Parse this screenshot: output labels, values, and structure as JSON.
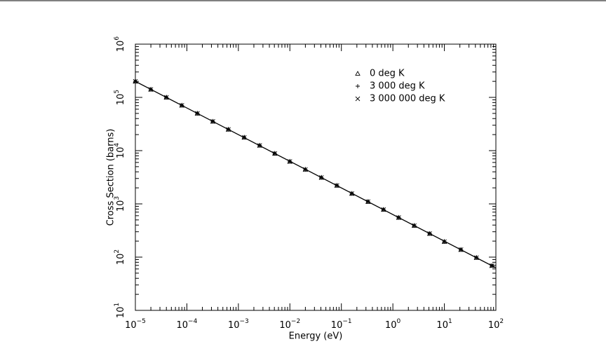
{
  "chart_data": {
    "type": "scatter",
    "x_label": "Energy (eV)",
    "y_label": "Cross Section (barns)",
    "log_x": true,
    "log_y": true,
    "minor_ticks": true,
    "legend": "upper right",
    "xlim": [
      1e-05,
      100
    ],
    "ylim": [
      10,
      1000000
    ],
    "xticks": [
      {
        "value": 1e-05,
        "label": "10",
        "exponent": "−5"
      },
      {
        "value": 0.0001,
        "label": "10",
        "exponent": "−4"
      },
      {
        "value": 0.001,
        "label": "10",
        "exponent": "−3"
      },
      {
        "value": 0.01,
        "label": "10",
        "exponent": "−2"
      },
      {
        "value": 0.1,
        "label": "10",
        "exponent": "−1"
      },
      {
        "value": 1,
        "label": "10",
        "exponent": "0"
      },
      {
        "value": 10,
        "label": "10",
        "exponent": "1"
      },
      {
        "value": 100,
        "label": "10",
        "exponent": "2"
      }
    ],
    "yticks": [
      {
        "value": 10,
        "label": "10",
        "exponent": "1"
      },
      {
        "value": 100,
        "label": "10",
        "exponent": "2"
      },
      {
        "value": 1000,
        "label": "10",
        "exponent": "3"
      },
      {
        "value": 10000,
        "label": "10",
        "exponent": "4"
      },
      {
        "value": 100000,
        "label": "10",
        "exponent": "5"
      },
      {
        "value": 1000000,
        "label": "10",
        "exponent": "6"
      }
    ],
    "line": {
      "color": "#000",
      "x": [
        1e-05,
        100
      ],
      "values": [
        200000,
        63
      ]
    },
    "x": [
      1e-05,
      2e-05,
      4e-05,
      8e-05,
      0.00016,
      0.00032,
      0.00064,
      0.0013,
      0.0026,
      0.0051,
      0.01,
      0.02,
      0.041,
      0.082,
      0.16,
      0.33,
      0.66,
      1.3,
      2.6,
      5.2,
      10,
      21,
      42,
      84
    ],
    "series": [
      {
        "name": "0 deg K",
        "color": "#000",
        "marker": "triangle",
        "values": [
          200000,
          141000,
          100000,
          70700,
          50000,
          35300,
          25000,
          17700,
          12500,
          8830,
          6250,
          4420,
          3120,
          2210,
          1560,
          1100,
          781,
          552,
          390,
          276,
          195,
          138,
          97.6,
          69
        ]
      },
      {
        "name": "3 000 deg K",
        "color": "#000",
        "marker": "plus",
        "values": [
          200000,
          141000,
          100000,
          70700,
          50000,
          35300,
          25000,
          17700,
          12500,
          8830,
          6250,
          4420,
          3120,
          2210,
          1560,
          1100,
          781,
          552,
          390,
          276,
          195,
          138,
          97.6,
          69
        ]
      },
      {
        "name": "3 000 000 deg K",
        "color": "#000",
        "marker": "cross",
        "values": [
          200000,
          141000,
          100000,
          70700,
          50000,
          35300,
          25000,
          17700,
          12500,
          8830,
          6250,
          4420,
          3120,
          2210,
          1560,
          1100,
          781,
          552,
          390,
          276,
          195,
          138,
          97.6,
          69
        ]
      }
    ]
  }
}
